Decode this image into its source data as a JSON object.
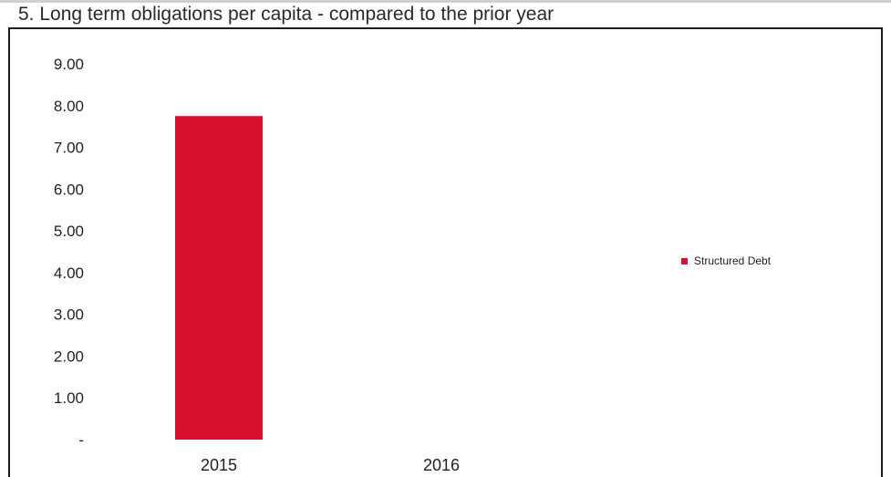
{
  "title": "5. Long term obligations per capita - compared to the prior year",
  "chart_data": {
    "type": "bar",
    "categories": [
      "2015",
      "2016"
    ],
    "series": [
      {
        "name": "Structured Debt",
        "values": [
          7.75,
          0
        ],
        "color": "#d8102c"
      }
    ],
    "ylim": [
      0,
      9
    ],
    "yticks": [
      0,
      1,
      2,
      3,
      4,
      5,
      6,
      7,
      8,
      9
    ],
    "ytick_labels": [
      "-",
      "1.00",
      "2.00",
      "3.00",
      "4.00",
      "5.00",
      "6.00",
      "7.00",
      "8.00",
      "9.00"
    ],
    "grid": false,
    "legend_position": "right"
  }
}
